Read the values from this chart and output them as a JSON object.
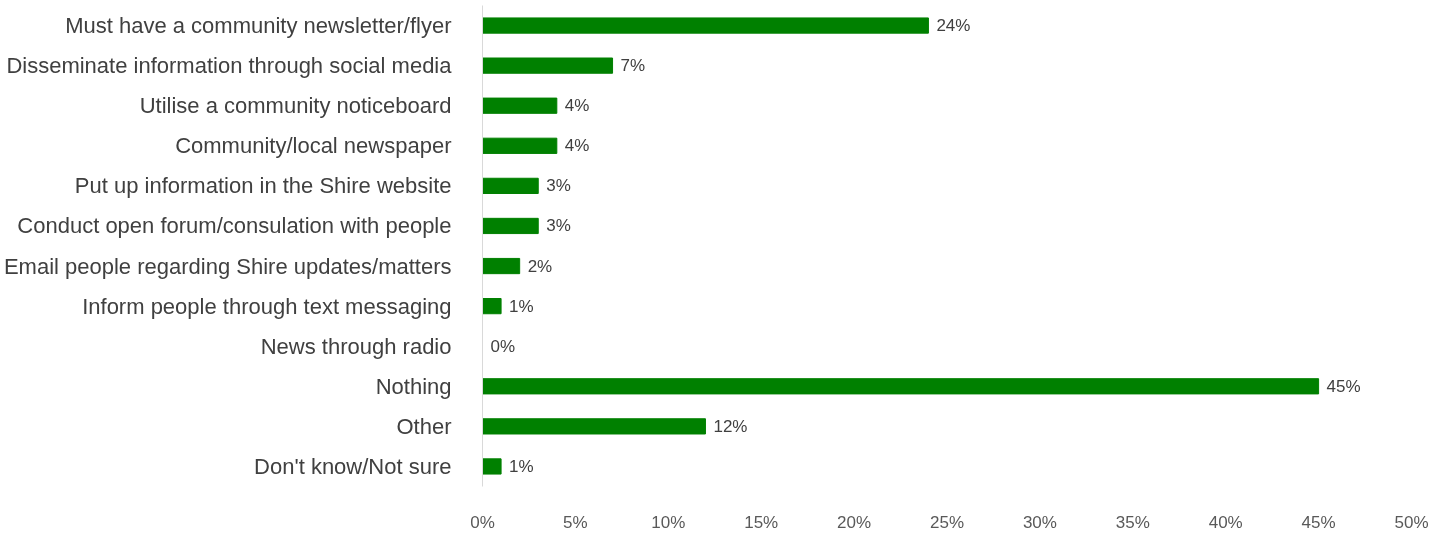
{
  "chart_data": {
    "type": "bar",
    "orientation": "horizontal",
    "categories": [
      "Must have a community newsletter/flyer",
      "Disseminate information through social media",
      "Utilise a community noticeboard",
      "Community/local newspaper",
      "Put up information in the Shire website",
      "Conduct open forum/consulation with people",
      "Email people regarding Shire updates/matters",
      "Inform people through text messaging",
      "News through radio",
      "Nothing",
      "Other",
      "Don't know/Not sure"
    ],
    "values": [
      24,
      7,
      4,
      4,
      3,
      3,
      2,
      1,
      0,
      45,
      12,
      1
    ],
    "value_labels": [
      "24%",
      "7%",
      "4%",
      "4%",
      "3%",
      "3%",
      "2%",
      "1%",
      "0%",
      "45%",
      "12%",
      "1%"
    ],
    "color": "#008000",
    "xlim": [
      0,
      50
    ],
    "xticks": [
      {
        "value": 0,
        "label": "0%"
      },
      {
        "value": 5,
        "label": "5%"
      },
      {
        "value": 10,
        "label": "10%"
      },
      {
        "value": 15,
        "label": "15%"
      },
      {
        "value": 20,
        "label": "20%"
      },
      {
        "value": 25,
        "label": "25%"
      },
      {
        "value": 30,
        "label": "30%"
      },
      {
        "value": 35,
        "label": "35%"
      },
      {
        "value": 40,
        "label": "40%"
      },
      {
        "value": 45,
        "label": "45%"
      },
      {
        "value": 50,
        "label": "50%"
      }
    ],
    "grid": false
  }
}
